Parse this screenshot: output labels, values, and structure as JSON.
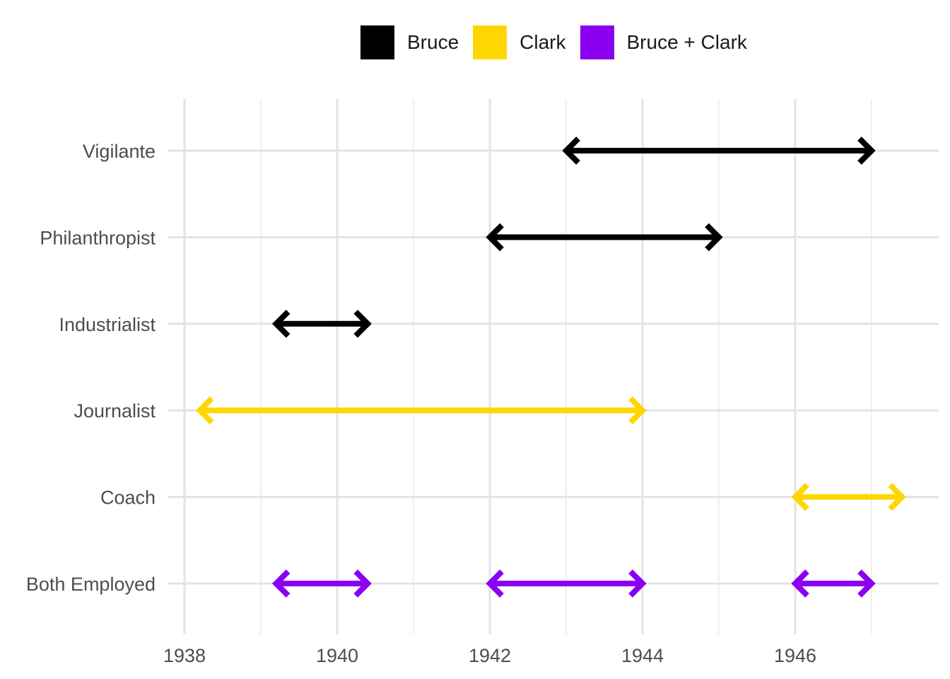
{
  "chart_data": {
    "type": "range-arrow",
    "title": "",
    "xlabel": "",
    "ylabel": "",
    "xlim": [
      1937.9,
      1947.6
    ],
    "x_ticks": [
      1938,
      1940,
      1942,
      1944,
      1946
    ],
    "grid": true,
    "legend_position": "top",
    "categories": [
      "Vigilante",
      "Philanthropist",
      "Industrialist",
      "Journalist",
      "Coach",
      "Both Employed"
    ],
    "series": [
      {
        "name": "Bruce",
        "color": "#000000"
      },
      {
        "name": "Clark",
        "color": "#FFD700"
      },
      {
        "name": "Bruce + Clark",
        "color": "#8B00F0"
      }
    ],
    "ranges": [
      {
        "category": "Vigilante",
        "series": "Bruce",
        "start": 1943.0,
        "end": 1947.0
      },
      {
        "category": "Philanthropist",
        "series": "Bruce",
        "start": 1942.0,
        "end": 1945.0
      },
      {
        "category": "Industrialist",
        "series": "Bruce",
        "start": 1939.2,
        "end": 1940.4
      },
      {
        "category": "Journalist",
        "series": "Clark",
        "start": 1938.2,
        "end": 1944.0
      },
      {
        "category": "Coach",
        "series": "Clark",
        "start": 1946.0,
        "end": 1947.4
      },
      {
        "category": "Both Employed",
        "series": "Bruce + Clark",
        "start": 1939.2,
        "end": 1940.4
      },
      {
        "category": "Both Employed",
        "series": "Bruce + Clark",
        "start": 1942.0,
        "end": 1944.0
      },
      {
        "category": "Both Employed",
        "series": "Bruce + Clark",
        "start": 1946.0,
        "end": 1947.0
      }
    ]
  }
}
